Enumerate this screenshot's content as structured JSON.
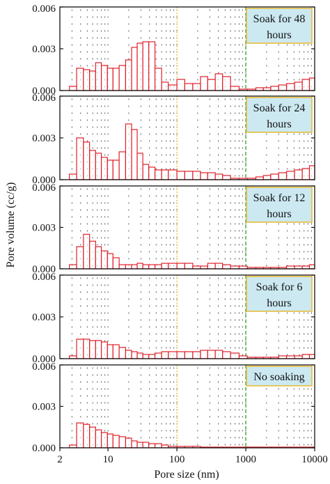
{
  "chart_data": {
    "type": "bar",
    "title": "",
    "xlabel": "Pore size (nm)",
    "ylabel": "Pore volume (cc/g)",
    "x_scale": "log",
    "xlim": [
      2,
      10000
    ],
    "x_ticks": [
      2,
      10,
      100,
      1000,
      10000
    ],
    "x_tick_labels": [
      "2",
      "10",
      "100",
      "1000",
      "10000"
    ],
    "ylim": [
      0,
      0.006
    ],
    "y_ticks": [
      0.0,
      0.003,
      0.006
    ],
    "y_tick_labels": [
      "0.000",
      "0.003",
      "0.006"
    ],
    "grid": true,
    "reference_lines": [
      {
        "x": 100,
        "color": "#e8c040",
        "style": "dotted"
      },
      {
        "x": 1000,
        "color": "#2ca02c",
        "style": "dashed"
      }
    ],
    "bar_color": "#e0202a",
    "legend_fill": "#cce9f2",
    "legend_border": "#e8b830",
    "bin_edges": [
      2.75,
      3.5,
      4.4,
      5.4,
      6.6,
      8.0,
      9.8,
      11.8,
      14.5,
      18.0,
      22.0,
      26.5,
      32.0,
      39.0,
      48.0,
      60.0,
      75.0,
      100.0,
      130.0,
      170.0,
      220.0,
      280.0,
      360.0,
      460.0,
      600.0,
      800.0,
      1050.0,
      1400.0,
      1800.0,
      2300.0,
      3000.0,
      3900.0,
      5100.0,
      6600.0,
      8400.0,
      10000.0
    ],
    "panels": [
      {
        "label": "Soak for 48 hours",
        "label_lines": [
          "Soak for 48",
          "hours"
        ],
        "values": [
          0.0003,
          0.0016,
          0.0015,
          0.0014,
          0.002,
          0.0018,
          0.0016,
          0.0016,
          0.0018,
          0.0022,
          0.0031,
          0.0034,
          0.0035,
          0.0035,
          0.0016,
          0.0006,
          0.0004,
          0.0008,
          0.0005,
          0.0005,
          0.001,
          0.0008,
          0.0012,
          0.001,
          0.0003,
          0.0001,
          0.0001,
          0.0002,
          0.0002,
          0.0003,
          0.0004,
          0.0005,
          0.0006,
          0.0008,
          0.0009
        ]
      },
      {
        "label": "Soak for 24 hours",
        "label_lines": [
          "Soak for 24",
          "hours"
        ],
        "values": [
          0.0004,
          0.003,
          0.0027,
          0.0021,
          0.0019,
          0.0016,
          0.0014,
          0.0014,
          0.002,
          0.004,
          0.0036,
          0.0019,
          0.0011,
          0.0009,
          0.0007,
          0.0007,
          0.0007,
          0.0006,
          0.0006,
          0.0006,
          0.0005,
          0.0005,
          0.0004,
          0.0003,
          0.0001,
          0.0001,
          0.0001,
          0.0002,
          0.0003,
          0.0004,
          0.0005,
          0.0006,
          0.0007,
          0.0008,
          0.001
        ]
      },
      {
        "label": "Soak for 12 hours",
        "label_lines": [
          "Soak for 12",
          "hours"
        ],
        "values": [
          0.0003,
          0.0016,
          0.0025,
          0.002,
          0.0016,
          0.0013,
          0.0011,
          0.0008,
          0.0003,
          0.0003,
          0.0003,
          0.0004,
          0.0003,
          0.0003,
          0.0003,
          0.0004,
          0.0004,
          0.0004,
          0.0004,
          0.0002,
          0.0002,
          0.0004,
          0.0004,
          0.0003,
          0.0002,
          0.0002,
          0.0001,
          0.0001,
          0.0001,
          0.0001,
          0.0001,
          0.0002,
          0.0002,
          0.0002,
          0.0003
        ]
      },
      {
        "label": "Soak for 6 hours",
        "label_lines": [
          "Soak for 6",
          "hours"
        ],
        "values": [
          0.0002,
          0.0014,
          0.0014,
          0.0013,
          0.0013,
          0.0012,
          0.001,
          0.001,
          0.0008,
          0.0006,
          0.0005,
          0.0004,
          0.0003,
          0.0003,
          0.0004,
          0.0005,
          0.0005,
          0.0005,
          0.0005,
          0.0005,
          0.0006,
          0.0006,
          0.0006,
          0.0005,
          0.0004,
          0.0002,
          0.0001,
          0.0001,
          0.0001,
          0.0001,
          0.0002,
          0.0002,
          0.0002,
          0.0003,
          0.0003
        ]
      },
      {
        "label": "No soaking",
        "label_lines": [
          "No soaking"
        ],
        "values": [
          0.0002,
          0.0018,
          0.0017,
          0.0015,
          0.0013,
          0.0011,
          0.001,
          0.0009,
          0.0008,
          0.0007,
          0.0005,
          0.0004,
          0.0004,
          0.0003,
          0.0003,
          0.0002,
          0.0001,
          0.0001,
          0.0001,
          0.0001,
          0.0,
          0.0,
          0.0,
          0.0,
          0.0,
          0.0,
          0.0,
          0.0,
          0.0,
          0.0,
          0.0,
          0.0,
          0.0,
          0.0,
          0.0
        ]
      }
    ]
  }
}
